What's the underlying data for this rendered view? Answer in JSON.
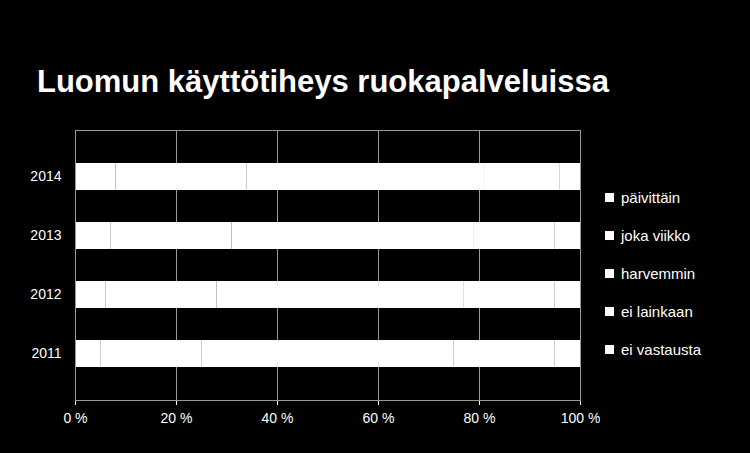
{
  "chart_data": {
    "type": "bar",
    "orientation": "horizontal",
    "stacked": true,
    "title": "Luomun käyttötiheys ruokapalveluissa",
    "categories": [
      "2011",
      "2012",
      "2013",
      "2014"
    ],
    "series": [
      {
        "name": "päivittäin",
        "color": "#ffffff",
        "values": [
          5,
          6,
          7,
          8
        ]
      },
      {
        "name": "joka viikko",
        "color": "#ffffff",
        "values": [
          20,
          22,
          24,
          26
        ]
      },
      {
        "name": "harvemmin",
        "color": "#ffffff",
        "values": [
          50,
          49,
          48,
          47
        ]
      },
      {
        "name": "ei lainkaan",
        "color": "#ffffff",
        "values": [
          20,
          18,
          16,
          15
        ]
      },
      {
        "name": "ei vastausta",
        "color": "#ffffff",
        "values": [
          5,
          5,
          5,
          4
        ]
      }
    ],
    "xlim": [
      0,
      100
    ],
    "xticks": [
      {
        "value": 0,
        "label": "0 %"
      },
      {
        "value": 20,
        "label": "20 %"
      },
      {
        "value": 40,
        "label": "40 %"
      },
      {
        "value": 60,
        "label": "60 %"
      },
      {
        "value": 80,
        "label": "80 %"
      },
      {
        "value": 100,
        "label": "100 %"
      }
    ],
    "grid": true,
    "legend": "right",
    "data_labels": false
  }
}
